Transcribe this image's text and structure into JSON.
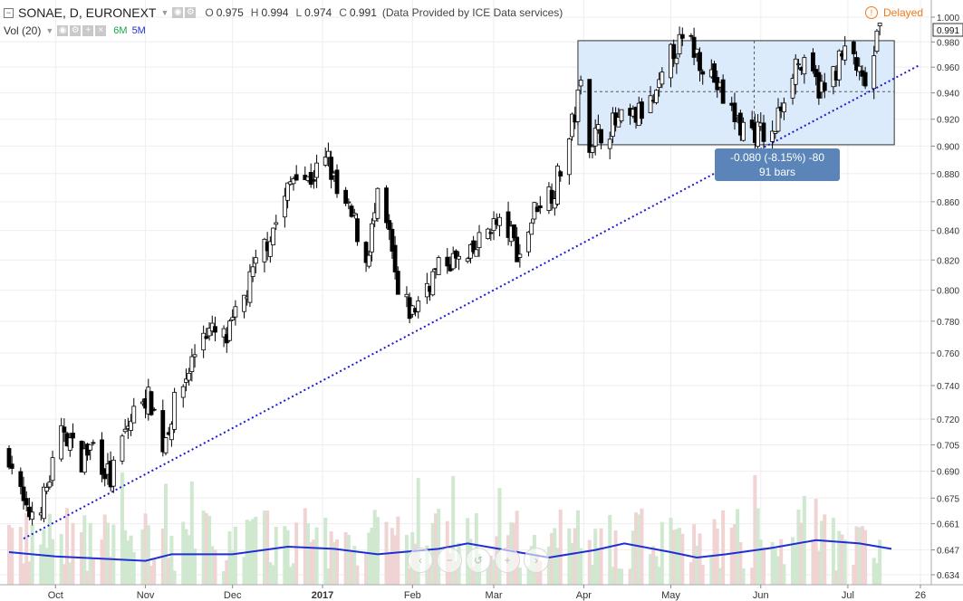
{
  "header": {
    "symbol_line": "SONAE, D, EURONEXT",
    "o_label": "O",
    "o_value": "0.975",
    "h_label": "H",
    "h_value": "0.994",
    "l_label": "L",
    "l_value": "0.974",
    "c_label": "C",
    "c_value": "0.991",
    "provider": "(Data Provided by ICE Data services)",
    "volume_label": "Vol (20)",
    "ma6_label": "6M",
    "ma5_label": "5M",
    "delayed": "Delayed"
  },
  "navigation": {
    "buttons": [
      "‹",
      "−",
      "↺",
      "+",
      "›"
    ]
  },
  "measure_box": {
    "line1": "-0.080 (-8.15%) -80",
    "line2": "91 bars"
  },
  "colors": {
    "up": "#ffffff",
    "down": "#000000",
    "trendline": "#1a1ad6",
    "range_fill": "#dcebfb",
    "range_border": "#333333",
    "volume_up": "#cfe8cf",
    "volume_down": "#f0d4d4",
    "volume_ma": "#1f2fd6",
    "label_bg": "#5b85b8",
    "last_price_bg": "#ffffff"
  },
  "chart_data": {
    "type": "candlestick",
    "price_axis_ticks": [
      "1.000",
      "0.980",
      "0.960",
      "0.940",
      "0.920",
      "0.900",
      "0.880",
      "0.860",
      "0.840",
      "0.820",
      "0.800",
      "0.780",
      "0.760",
      "0.740",
      "0.720",
      "0.705",
      "0.690",
      "0.675",
      "0.661",
      "0.647",
      "0.634"
    ],
    "price_axis_scale": "log",
    "last_price_label": "0.991",
    "x_axis_labels": [
      "Oct",
      "Nov",
      "Dec",
      "2017",
      "Feb",
      "Mar",
      "Apr",
      "May",
      "Jun",
      "Jul",
      "26"
    ],
    "x_axis_dates": [
      "2016-10-01",
      "2016-11-01",
      "2016-12-01",
      "2017-01-01",
      "2017-02-01",
      "2017-03-01",
      "2017-04-01",
      "2017-05-01",
      "2017-06-01",
      "2017-07-01",
      "2017-07-26"
    ],
    "date_range": [
      "2016-09-15",
      "2017-07-26"
    ],
    "trendline": {
      "points": [
        [
          "2016-09-20",
          0.653
        ],
        [
          "2017-07-26",
          0.962
        ]
      ],
      "style": "dotted"
    },
    "range_box": {
      "date_start": "2017-03-30",
      "date_end": "2017-07-17",
      "price_high": 0.981,
      "price_low": 0.901,
      "mid": 0.941
    },
    "close_path": [
      [
        "2016-09-15",
        0.7
      ],
      [
        "2016-09-21",
        0.665
      ],
      [
        "2016-09-27",
        0.675
      ],
      [
        "2016-10-04",
        0.715
      ],
      [
        "2016-10-09",
        0.695
      ],
      [
        "2016-10-14",
        0.705
      ],
      [
        "2016-10-20",
        0.685
      ],
      [
        "2016-10-25",
        0.712
      ],
      [
        "2016-10-31",
        0.735
      ],
      [
        "2016-11-03",
        0.73
      ],
      [
        "2016-11-07",
        0.705
      ],
      [
        "2016-11-11",
        0.728
      ],
      [
        "2016-11-15",
        0.745
      ],
      [
        "2016-11-21",
        0.775
      ],
      [
        "2016-11-29",
        0.768
      ],
      [
        "2016-12-05",
        0.795
      ],
      [
        "2016-12-12",
        0.83
      ],
      [
        "2016-12-17",
        0.85
      ],
      [
        "2016-12-23",
        0.885
      ],
      [
        "2016-12-27",
        0.875
      ],
      [
        "2017-01-03",
        0.89
      ],
      [
        "2017-01-06",
        0.865
      ],
      [
        "2017-01-12",
        0.845
      ],
      [
        "2017-01-16",
        0.82
      ],
      [
        "2017-01-20",
        0.86
      ],
      [
        "2017-01-24",
        0.835
      ],
      [
        "2017-01-27",
        0.795
      ],
      [
        "2017-02-01",
        0.785
      ],
      [
        "2017-02-06",
        0.805
      ],
      [
        "2017-02-13",
        0.82
      ],
      [
        "2017-02-20",
        0.818
      ],
      [
        "2017-02-28",
        0.845
      ],
      [
        "2017-03-06",
        0.84
      ],
      [
        "2017-03-10",
        0.823
      ],
      [
        "2017-03-16",
        0.86
      ],
      [
        "2017-03-22",
        0.87
      ],
      [
        "2017-03-27",
        0.905
      ],
      [
        "2017-03-31",
        0.945
      ],
      [
        "2017-04-03",
        0.905
      ],
      [
        "2017-04-10",
        0.915
      ],
      [
        "2017-04-18",
        0.92
      ],
      [
        "2017-04-26",
        0.935
      ],
      [
        "2017-05-02",
        0.975
      ],
      [
        "2017-05-07",
        0.98
      ],
      [
        "2017-05-15",
        0.955
      ],
      [
        "2017-05-19",
        0.935
      ],
      [
        "2017-05-25",
        0.915
      ],
      [
        "2017-06-01",
        0.91
      ],
      [
        "2017-06-05",
        0.905
      ],
      [
        "2017-06-09",
        0.94
      ],
      [
        "2017-06-13",
        0.965
      ],
      [
        "2017-06-19",
        0.95
      ],
      [
        "2017-06-23",
        0.94
      ],
      [
        "2017-06-28",
        0.965
      ],
      [
        "2017-07-02",
        0.975
      ],
      [
        "2017-07-06",
        0.945
      ],
      [
        "2017-07-09",
        0.955
      ],
      [
        "2017-07-12",
        0.991
      ]
    ],
    "volume_ma_path": [
      [
        "2016-09-15",
        0.3
      ],
      [
        "2016-10-01",
        0.26
      ],
      [
        "2016-11-01",
        0.22
      ],
      [
        "2016-11-10",
        0.28
      ],
      [
        "2016-12-01",
        0.28
      ],
      [
        "2016-12-20",
        0.35
      ],
      [
        "2017-01-05",
        0.33
      ],
      [
        "2017-01-20",
        0.28
      ],
      [
        "2017-02-10",
        0.33
      ],
      [
        "2017-02-20",
        0.38
      ],
      [
        "2017-03-05",
        0.32
      ],
      [
        "2017-03-20",
        0.25
      ],
      [
        "2017-04-05",
        0.32
      ],
      [
        "2017-04-15",
        0.38
      ],
      [
        "2017-05-01",
        0.3
      ],
      [
        "2017-05-10",
        0.25
      ],
      [
        "2017-05-20",
        0.28
      ],
      [
        "2017-06-05",
        0.34
      ],
      [
        "2017-06-20",
        0.41
      ],
      [
        "2017-07-05",
        0.38
      ],
      [
        "2017-07-16",
        0.33
      ]
    ]
  }
}
